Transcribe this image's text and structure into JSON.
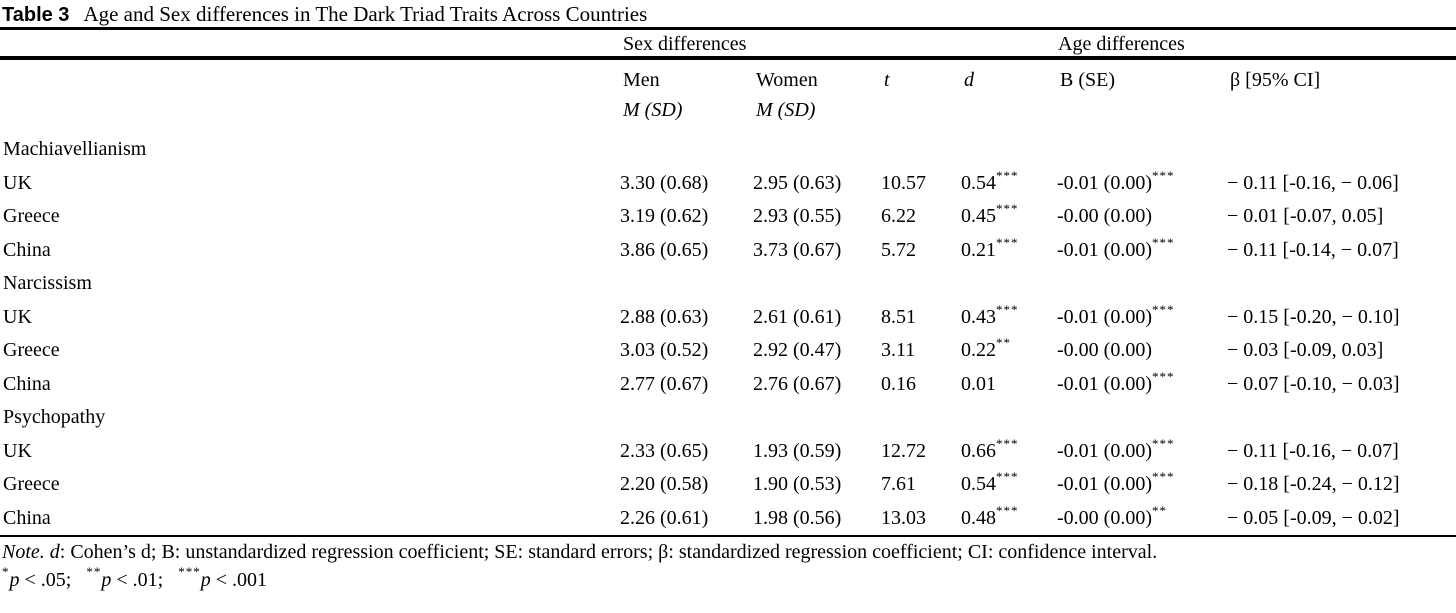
{
  "title": {
    "label": "Table 3",
    "text": "Age and Sex differences in The Dark Triad Traits Across Countries"
  },
  "header": {
    "sex_spanner": "Sex differences",
    "age_spanner": "Age differences",
    "men": "Men",
    "men_sub": "M (SD)",
    "women": "Women",
    "women_sub": "M (SD)",
    "t": "t",
    "d": "d",
    "b": "B (SE)",
    "beta": "β [95% CI]"
  },
  "sections": [
    {
      "name": "Machiavellianism",
      "rows": [
        {
          "country": "UK",
          "men": "3.30 (0.68)",
          "women": "2.95 (0.63)",
          "t": "10.57",
          "d": "0.54",
          "d_sig": "***",
          "b": "-0.01 (0.00)",
          "b_sig": "***",
          "beta": "− 0.11 [-0.16, − 0.06]"
        },
        {
          "country": "Greece",
          "men": "3.19 (0.62)",
          "women": "2.93 (0.55)",
          "t": "6.22",
          "d": "0.45",
          "d_sig": "***",
          "b": "-0.00 (0.00)",
          "b_sig": "",
          "beta": "− 0.01 [-0.07, 0.05]"
        },
        {
          "country": "China",
          "men": "3.86 (0.65)",
          "women": "3.73 (0.67)",
          "t": "5.72",
          "d": "0.21",
          "d_sig": "***",
          "b": "-0.01 (0.00)",
          "b_sig": "***",
          "beta": "− 0.11 [-0.14, − 0.07]"
        }
      ]
    },
    {
      "name": "Narcissism",
      "rows": [
        {
          "country": "UK",
          "men": "2.88 (0.63)",
          "women": "2.61 (0.61)",
          "t": "8.51",
          "d": "0.43",
          "d_sig": "***",
          "b": "-0.01 (0.00)",
          "b_sig": "***",
          "beta": "− 0.15 [-0.20, − 0.10]"
        },
        {
          "country": "Greece",
          "men": "3.03 (0.52)",
          "women": "2.92 (0.47)",
          "t": "3.11",
          "d": "0.22",
          "d_sig": "**",
          "b": "-0.00 (0.00)",
          "b_sig": "",
          "beta": "− 0.03 [-0.09, 0.03]"
        },
        {
          "country": "China",
          "men": "2.77 (0.67)",
          "women": "2.76 (0.67)",
          "t": "0.16",
          "d": "0.01",
          "d_sig": "",
          "b": "-0.01 (0.00)",
          "b_sig": "***",
          "beta": "− 0.07 [-0.10, − 0.03]"
        }
      ]
    },
    {
      "name": "Psychopathy",
      "rows": [
        {
          "country": "UK",
          "men": "2.33 (0.65)",
          "women": "1.93 (0.59)",
          "t": "12.72",
          "d": "0.66",
          "d_sig": "***",
          "b": "-0.01 (0.00)",
          "b_sig": "***",
          "beta": "− 0.11 [-0.16, − 0.07]"
        },
        {
          "country": "Greece",
          "men": "2.20 (0.58)",
          "women": "1.90 (0.53)",
          "t": "7.61",
          "d": "0.54",
          "d_sig": "***",
          "b": "-0.01 (0.00)",
          "b_sig": "***",
          "beta": "− 0.18 [-0.24, − 0.12]"
        },
        {
          "country": "China",
          "men": "2.26 (0.61)",
          "women": "1.98 (0.56)",
          "t": "13.03",
          "d": "0.48",
          "d_sig": "***",
          "b": "-0.00 (0.00)",
          "b_sig": "**",
          "beta": "− 0.05 [-0.09, − 0.02]"
        }
      ]
    }
  ],
  "note": {
    "label": "Note.",
    "stat_term": "d",
    "text": ": Cohen’s d; B: unstandardized regression coefficient; SE: standard errors; β: standardized regression coefficient; CI: confidence interval.",
    "sig": [
      {
        "stars": "*",
        "p": "p",
        "cond": " < .05;"
      },
      {
        "stars": "**",
        "p": "p",
        "cond": " < .01;"
      },
      {
        "stars": "***",
        "p": "p",
        "cond": " < .001"
      }
    ]
  }
}
